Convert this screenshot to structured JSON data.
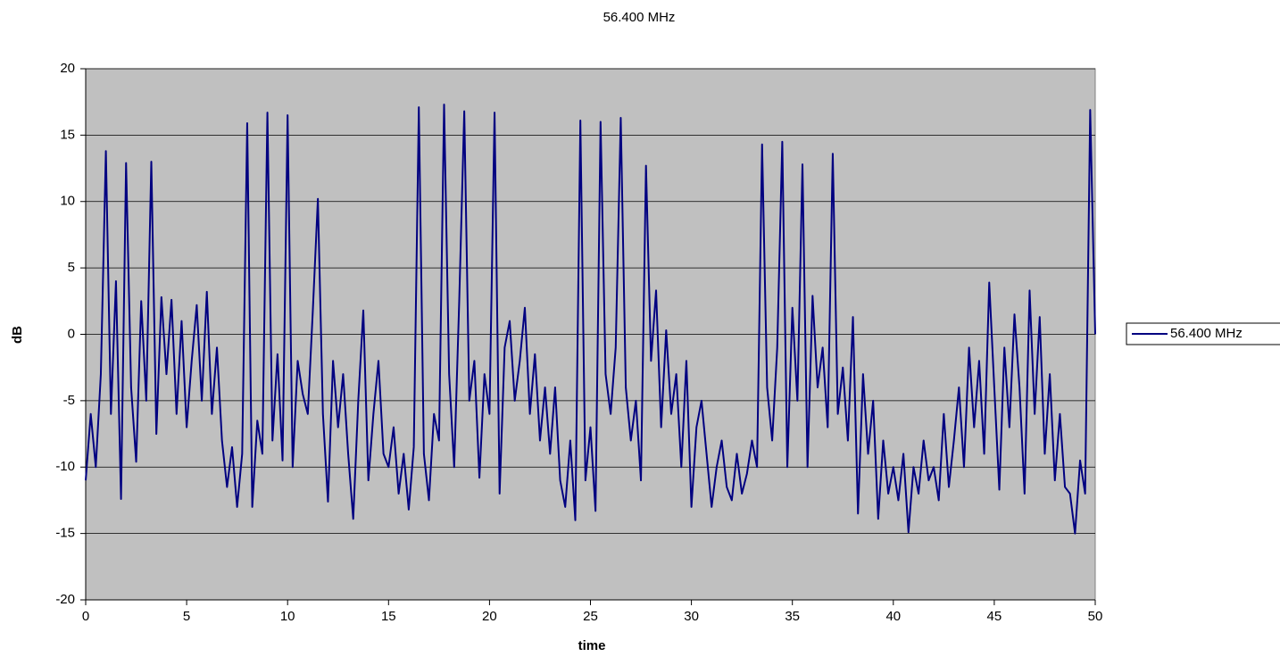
{
  "chart_data": {
    "type": "line",
    "title": "56.400 MHz",
    "x_label": "time",
    "y_label": "dB",
    "xlim": [
      0,
      50
    ],
    "xticks": [
      0,
      5,
      10,
      15,
      20,
      25,
      30,
      35,
      40,
      45,
      50
    ],
    "ylim": [
      -20,
      20
    ],
    "yticks": [
      -20,
      -15,
      -10,
      -5,
      0,
      5,
      10,
      15,
      20
    ],
    "grid": true,
    "legend": "right",
    "x": [
      0,
      0.25,
      0.5,
      0.75,
      1,
      1.25,
      1.5,
      1.75,
      2,
      2.25,
      2.5,
      2.75,
      3,
      3.25,
      3.5,
      3.75,
      4,
      4.25,
      4.5,
      4.75,
      5,
      5.25,
      5.5,
      5.75,
      6,
      6.25,
      6.5,
      6.75,
      7,
      7.25,
      7.5,
      7.75,
      8,
      8.25,
      8.5,
      8.75,
      9,
      9.25,
      9.5,
      9.75,
      10,
      10.25,
      10.5,
      10.75,
      11,
      11.25,
      11.5,
      11.75,
      12,
      12.25,
      12.5,
      12.75,
      13,
      13.25,
      13.5,
      13.75,
      14,
      14.25,
      14.5,
      14.75,
      15,
      15.25,
      15.5,
      15.75,
      16,
      16.25,
      16.5,
      16.75,
      17,
      17.25,
      17.5,
      17.75,
      18,
      18.25,
      18.5,
      18.75,
      19,
      19.25,
      19.5,
      19.75,
      20,
      20.25,
      20.5,
      20.75,
      21,
      21.25,
      21.5,
      21.75,
      22,
      22.25,
      22.5,
      22.75,
      23,
      23.25,
      23.5,
      23.75,
      24,
      24.25,
      24.5,
      24.75,
      25,
      25.25,
      25.5,
      25.75,
      26,
      26.25,
      26.5,
      26.75,
      27,
      27.25,
      27.5,
      27.75,
      28,
      28.25,
      28.5,
      28.75,
      29,
      29.25,
      29.5,
      29.75,
      30,
      30.25,
      30.5,
      30.75,
      31,
      31.25,
      31.5,
      31.75,
      32,
      32.25,
      32.5,
      32.75,
      33,
      33.25,
      33.5,
      33.75,
      34,
      34.25,
      34.5,
      34.75,
      35,
      35.25,
      35.5,
      35.75,
      36,
      36.25,
      36.5,
      36.75,
      37,
      37.25,
      37.5,
      37.75,
      38,
      38.25,
      38.5,
      38.75,
      39,
      39.25,
      39.5,
      39.75,
      40,
      40.25,
      40.5,
      40.75,
      41,
      41.25,
      41.5,
      41.75,
      42,
      42.25,
      42.5,
      42.75,
      43,
      43.25,
      43.5,
      43.75,
      44,
      44.25,
      44.5,
      44.75,
      45,
      45.25,
      45.5,
      45.75,
      46,
      46.25,
      46.5,
      46.75,
      47,
      47.25,
      47.5,
      47.75,
      48,
      48.25,
      48.5,
      48.75,
      49,
      49.25,
      49.5,
      49.75,
      50
    ],
    "series": [
      {
        "name": "56.400 MHz",
        "color": "#000080",
        "values": [
          -11,
          -6,
          -10,
          -3,
          13.8,
          -6,
          4,
          -12.4,
          12.9,
          -4,
          -9.6,
          2.5,
          -5,
          13,
          -7.5,
          2.8,
          -3,
          2.6,
          -6,
          1,
          -7,
          -2,
          2.2,
          -5,
          3.2,
          -6,
          -1,
          -8,
          -11.5,
          -8.5,
          -13,
          -9,
          15.9,
          -13,
          -6.5,
          -9,
          16.7,
          -8,
          -1.5,
          -9.5,
          16.5,
          -10,
          -2,
          -4.5,
          -6,
          1.8,
          10.2,
          -6,
          -12.6,
          -2,
          -7,
          -3,
          -9,
          -13.9,
          -5,
          1.8,
          -11,
          -6,
          -2,
          -9,
          -10,
          -7,
          -12,
          -9,
          -13.2,
          -8.5,
          17.1,
          -9,
          -12.5,
          -6,
          -8,
          17.3,
          -3,
          -10,
          2.5,
          16.8,
          -5,
          -2,
          -10.8,
          -3,
          -6,
          16.7,
          -12,
          -1,
          1,
          -5,
          -2,
          2,
          -6,
          -1.5,
          -8,
          -4,
          -9,
          -4,
          -11,
          -13,
          -8,
          -14,
          16.1,
          -11,
          -7,
          -13.3,
          16,
          -3,
          -6,
          -1,
          16.3,
          -4,
          -8,
          -5,
          -11,
          12.7,
          -2,
          3.3,
          -7,
          0.3,
          -6,
          -3,
          -10,
          -2,
          -13,
          -7,
          -5,
          -9,
          -13,
          -10,
          -8,
          -11.5,
          -12.5,
          -9,
          -12,
          -10.5,
          -8,
          -10,
          14.3,
          -4,
          -8,
          -1,
          14.5,
          -10,
          2,
          -5,
          12.8,
          -10,
          2.9,
          -4,
          -1,
          -7,
          13.6,
          -6,
          -2.5,
          -8,
          1.3,
          -13.5,
          -3,
          -9,
          -5,
          -13.9,
          -8,
          -12,
          -10,
          -12.5,
          -9,
          -14.9,
          -10,
          -12,
          -8,
          -11,
          -10,
          -12.5,
          -6,
          -11.5,
          -8,
          -4,
          -10,
          -1,
          -7,
          -2,
          -9,
          3.9,
          -4,
          -11.7,
          -1,
          -7,
          1.5,
          -4,
          -12,
          3.3,
          -6,
          1.3,
          -9,
          -3,
          -11,
          -6,
          -11.5,
          -12,
          -15,
          -9.5,
          -12,
          16.9,
          0
        ]
      }
    ]
  }
}
